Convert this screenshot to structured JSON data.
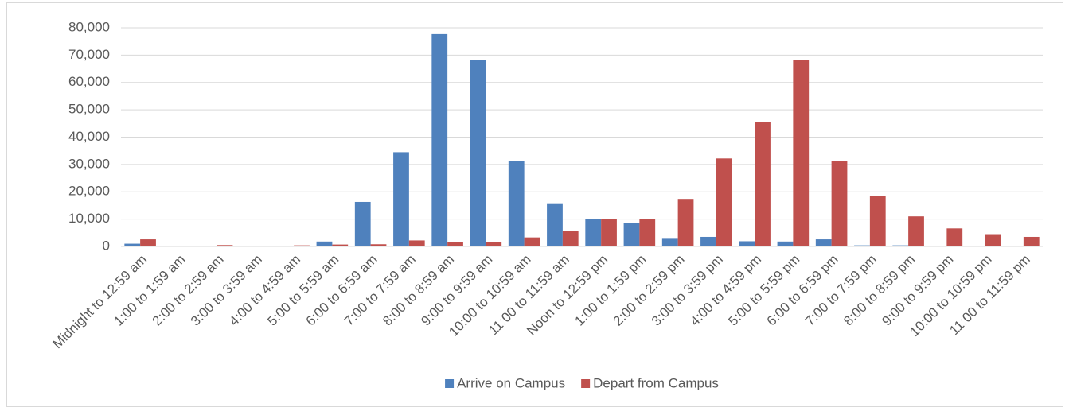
{
  "chart_data": {
    "type": "bar",
    "categories": [
      "Midnight to 12:59 am",
      "1:00 to 1:59 am",
      "2:00 to 2:59 am",
      "3:00 to 3:59 am",
      "4:00 to 4:59 am",
      "5:00 to 5:59 am",
      "6:00 to 6:59 am",
      "7:00 to 7:59 am",
      "8:00 to 8:59 am",
      "9:00 to 9:59 am",
      "10:00 to 10:59 am",
      "11:00 to 11:59 am",
      "Noon to 12:59 pm",
      "1:00 to 1:59 pm",
      "2:00 to 2:59 pm",
      "3:00 to 3:59 pm",
      "4:00 to 4:59 pm",
      "5:00 to 5:59 pm",
      "6:00 to 6:59 pm",
      "7:00 to 7:59 pm",
      "8:00 to 8:59 pm",
      "9:00 to 9:59 pm",
      "10:00 to 10:59 pm",
      "11:00 to 11:59 pm"
    ],
    "series": [
      {
        "name": "Arrive on Campus",
        "color": "#4f81bd",
        "values": [
          1000,
          200,
          100,
          100,
          200,
          1800,
          16300,
          34500,
          77700,
          68200,
          31300,
          15800,
          9900,
          8500,
          2800,
          3500,
          1900,
          1800,
          2600,
          400,
          400,
          200,
          100,
          100
        ]
      },
      {
        "name": "Depart from Campus",
        "color": "#c0504d",
        "values": [
          2600,
          200,
          500,
          200,
          400,
          700,
          800,
          2200,
          1600,
          1700,
          3300,
          5600,
          10100,
          10000,
          17400,
          32200,
          45400,
          68200,
          31300,
          18600,
          11000,
          6600,
          4500,
          3500
        ]
      }
    ],
    "ylim": [
      0,
      80000
    ],
    "yticks": [
      0,
      {
        "value": 10000,
        "label": "10,000"
      },
      {
        "value": 20000,
        "label": "20,000"
      },
      {
        "value": 30000,
        "label": "30,000"
      },
      {
        "value": 40000,
        "label": "40,000"
      },
      {
        "value": 50000,
        "label": "50,000"
      },
      {
        "value": 60000,
        "label": "60,000"
      },
      {
        "value": 70000,
        "label": "70,000"
      },
      {
        "value": 80000,
        "label": "80,000"
      }
    ],
    "grid": true,
    "legend": "bottom"
  }
}
